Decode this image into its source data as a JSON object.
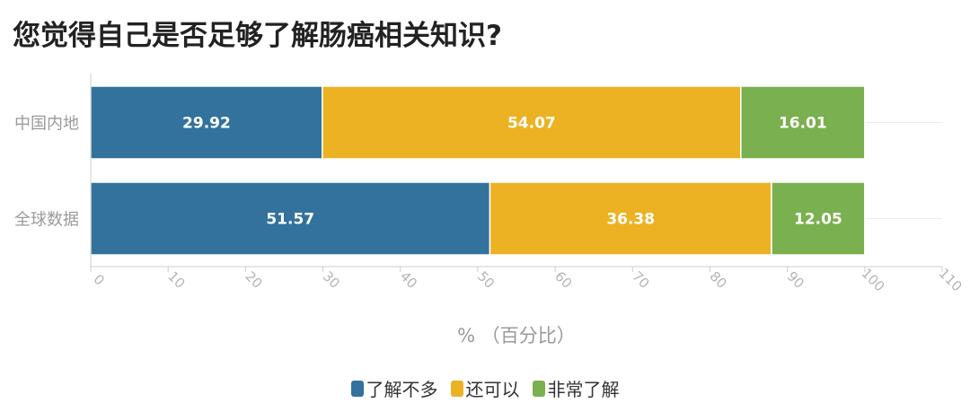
{
  "chart_data": {
    "type": "bar",
    "orientation": "horizontal",
    "stacked": true,
    "title": "您觉得自己是否足够了解肠癌相关知识?",
    "xlabel": "% （百分比）",
    "ylabel": "",
    "xlim": [
      0,
      110
    ],
    "xticks": [
      0,
      10,
      20,
      30,
      40,
      50,
      60,
      70,
      80,
      90,
      100,
      110
    ],
    "categories": [
      "中国内地",
      "全球数据"
    ],
    "series": [
      {
        "name": "了解不多",
        "color": "#33729d",
        "values": [
          29.92,
          51.57
        ]
      },
      {
        "name": "还可以",
        "color": "#ecb224",
        "values": [
          54.07,
          36.38
        ]
      },
      {
        "name": "非常了解",
        "color": "#7ab050",
        "values": [
          16.01,
          12.05
        ]
      }
    ],
    "legend_position": "bottom",
    "grid": true
  }
}
